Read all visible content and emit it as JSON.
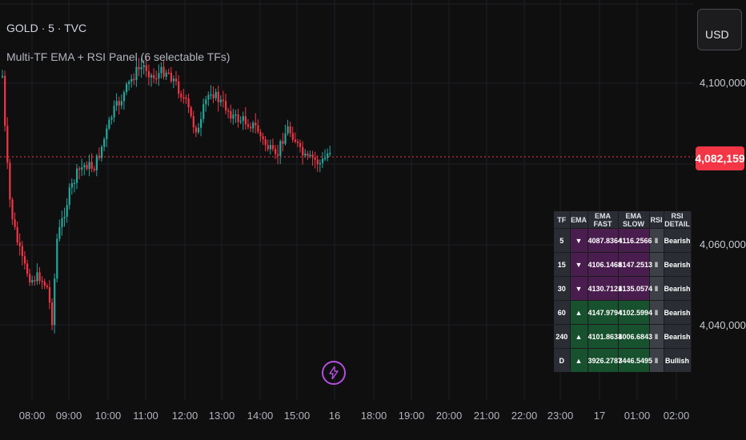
{
  "header": {
    "symbol_line": "GOLD · 5 · TVC",
    "indicator_line": "Multi-TF EMA + RSI Panel (6 selectable TFs)"
  },
  "currency_button": {
    "label": "USD"
  },
  "price_axis": {
    "labels": [
      "4,100,000",
      "4,060,000",
      "4,040,000"
    ],
    "last_price": "4,082,159"
  },
  "time_axis": {
    "labels": [
      "08:00",
      "09:00",
      "10:00",
      "11:00",
      "12:00",
      "13:00",
      "14:00",
      "15:00",
      "16",
      "18:00",
      "19:00",
      "20:00",
      "21:00",
      "22:00",
      "23:00",
      "17",
      "01:00",
      "02:00"
    ]
  },
  "panel": {
    "headers": [
      "TF",
      "EMA",
      "EMA FAST",
      "EMA SLOW",
      "RSI",
      "RSI DETAIL"
    ],
    "rows": [
      {
        "tf": "5",
        "ema": "▼",
        "fast": "4087.8364",
        "slow": "4116.2566",
        "rsi": "‖",
        "detail": "Bearish",
        "trend": "down"
      },
      {
        "tf": "15",
        "ema": "▼",
        "fast": "4106.1468",
        "slow": "4147.2513",
        "rsi": "‖",
        "detail": "Bearish",
        "trend": "down"
      },
      {
        "tf": "30",
        "ema": "▼",
        "fast": "4130.7121",
        "slow": "4135.0574",
        "rsi": "‖",
        "detail": "Bearish",
        "trend": "down"
      },
      {
        "tf": "60",
        "ema": "▲",
        "fast": "4147.9794",
        "slow": "4102.5994",
        "rsi": "‖",
        "detail": "Bearish",
        "trend": "up"
      },
      {
        "tf": "240",
        "ema": "▲",
        "fast": "4101.8633",
        "slow": "4006.6843",
        "rsi": "‖",
        "detail": "Bearish",
        "trend": "up"
      },
      {
        "tf": "D",
        "ema": "▲",
        "fast": "3926.2787",
        "slow": "3446.5495",
        "rsi": "‖",
        "detail": "Bullish",
        "trend": "up"
      }
    ]
  },
  "colors": {
    "background": "#0f0f10",
    "bull_candle": "#26a69a",
    "bear_candle": "#f23645",
    "grid": "#1e1f23",
    "last_price_line": "#f23645",
    "panel_down": "#4a1d4f",
    "panel_up": "#17512e",
    "alert_bolt": "#b44ee0"
  },
  "icons": {
    "alert": "lightning-bolt-icon"
  }
}
